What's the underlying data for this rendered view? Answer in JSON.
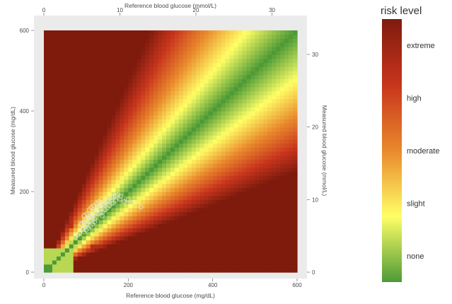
{
  "chart_data": {
    "type": "heatmap",
    "title": "",
    "xlabel_bottom": "Reference blood glucose (mg/dL)",
    "xlabel_top": "Reference blood glucose (mmol/L)",
    "ylabel_left": "Measured blood glucose (mg/dL)",
    "ylabel_right": "Measured blood glucose (mmol/L)",
    "xlim_mgdl": [
      0,
      600
    ],
    "ylim_mgdl": [
      0,
      600
    ],
    "xlim_mmol": [
      0,
      33.3
    ],
    "ylim_mmol": [
      0,
      33.3
    ],
    "x_ticks_bottom": [
      0,
      200,
      400,
      600
    ],
    "y_ticks_left": [
      0,
      200,
      400,
      600
    ],
    "x_ticks_top": [
      0,
      10,
      20,
      30
    ],
    "y_ticks_right": [
      0,
      10,
      20,
      30
    ],
    "grid": true,
    "legend": {
      "title": "risk level",
      "placement": "right",
      "labels": [
        "extreme",
        "high",
        "moderate",
        "slight",
        "none"
      ],
      "level_values": [
        4,
        3,
        2,
        1,
        0
      ],
      "colors": [
        "#7e1b0d",
        "#c8351d",
        "#e9892c",
        "#ffff66",
        "#4d9a36"
      ]
    },
    "points": [
      [
        90,
        118
      ],
      [
        96,
        126
      ],
      [
        100,
        130
      ],
      [
        105,
        135
      ],
      [
        110,
        138
      ],
      [
        115,
        142
      ],
      [
        118,
        150
      ],
      [
        122,
        148
      ],
      [
        125,
        155
      ],
      [
        128,
        160
      ],
      [
        132,
        158
      ],
      [
        135,
        165
      ],
      [
        140,
        168
      ],
      [
        145,
        172
      ],
      [
        148,
        175
      ],
      [
        152,
        178
      ],
      [
        155,
        182
      ],
      [
        160,
        185
      ],
      [
        165,
        188
      ],
      [
        170,
        190
      ],
      [
        175,
        192
      ],
      [
        182,
        188
      ],
      [
        190,
        175
      ],
      [
        200,
        180
      ],
      [
        210,
        172
      ],
      [
        230,
        162
      ],
      [
        95,
        140
      ],
      [
        108,
        155
      ],
      [
        112,
        160
      ],
      [
        118,
        165
      ],
      [
        125,
        170
      ],
      [
        130,
        175
      ],
      [
        95,
        100
      ],
      [
        100,
        105
      ],
      [
        105,
        110
      ],
      [
        110,
        115
      ],
      [
        115,
        120
      ],
      [
        120,
        125
      ],
      [
        90,
        105
      ],
      [
        98,
        112
      ],
      [
        85,
        98
      ],
      [
        80,
        92
      ],
      [
        75,
        88
      ],
      [
        88,
        120
      ],
      [
        102,
        145
      ],
      [
        140,
        150
      ],
      [
        150,
        160
      ],
      [
        160,
        170
      ],
      [
        170,
        178
      ],
      [
        180,
        182
      ],
      [
        120,
        132
      ],
      [
        135,
        148
      ],
      [
        145,
        155
      ],
      [
        155,
        165
      ],
      [
        165,
        172
      ],
      [
        100,
        120
      ],
      [
        108,
        128
      ],
      [
        115,
        135
      ],
      [
        128,
        145
      ],
      [
        138,
        140
      ]
    ]
  }
}
